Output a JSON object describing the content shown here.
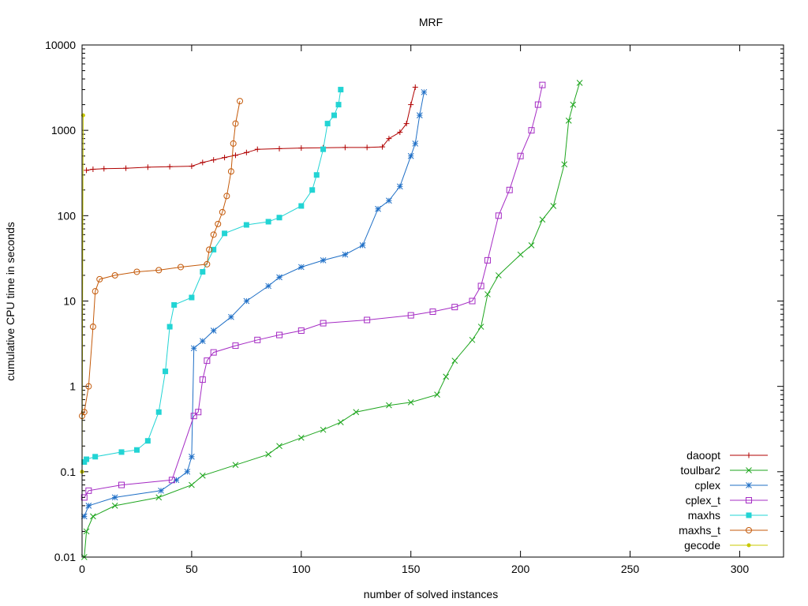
{
  "chart_data": {
    "type": "line",
    "title": "MRF",
    "xlabel": "number of solved instances",
    "ylabel": "cumulative CPU time in seconds",
    "xscale": "linear",
    "yscale": "log",
    "xlim": [
      0,
      320
    ],
    "ylim": [
      0.01,
      10000
    ],
    "xticks": [
      "0",
      "50",
      "100",
      "150",
      "200",
      "250",
      "300"
    ],
    "yticks": [
      "0.01",
      "0.1",
      "1",
      "10",
      "100",
      "1000",
      "10000"
    ],
    "legend_position": "bottom-right",
    "series": [
      {
        "name": "daoopt",
        "color": "#b00000",
        "marker": "plus",
        "points": [
          [
            2,
            340
          ],
          [
            5,
            350
          ],
          [
            10,
            355
          ],
          [
            20,
            360
          ],
          [
            30,
            370
          ],
          [
            40,
            375
          ],
          [
            50,
            380
          ],
          [
            55,
            420
          ],
          [
            60,
            450
          ],
          [
            65,
            480
          ],
          [
            70,
            510
          ],
          [
            75,
            550
          ],
          [
            80,
            600
          ],
          [
            90,
            610
          ],
          [
            100,
            620
          ],
          [
            110,
            625
          ],
          [
            120,
            630
          ],
          [
            130,
            630
          ],
          [
            137,
            640
          ],
          [
            140,
            800
          ],
          [
            145,
            950
          ],
          [
            148,
            1200
          ],
          [
            150,
            2000
          ],
          [
            152,
            3200
          ]
        ]
      },
      {
        "name": "toulbar2",
        "color": "#1da51d",
        "marker": "x",
        "points": [
          [
            1,
            0.01
          ],
          [
            2,
            0.02
          ],
          [
            5,
            0.03
          ],
          [
            15,
            0.04
          ],
          [
            35,
            0.05
          ],
          [
            50,
            0.07
          ],
          [
            55,
            0.09
          ],
          [
            70,
            0.12
          ],
          [
            85,
            0.16
          ],
          [
            90,
            0.2
          ],
          [
            100,
            0.25
          ],
          [
            110,
            0.31
          ],
          [
            118,
            0.38
          ],
          [
            125,
            0.5
          ],
          [
            140,
            0.6
          ],
          [
            150,
            0.65
          ],
          [
            162,
            0.8
          ],
          [
            166,
            1.3
          ],
          [
            170,
            2
          ],
          [
            178,
            3.5
          ],
          [
            182,
            5
          ],
          [
            185,
            12
          ],
          [
            190,
            20
          ],
          [
            200,
            35
          ],
          [
            205,
            45
          ],
          [
            210,
            90
          ],
          [
            215,
            130
          ],
          [
            220,
            400
          ],
          [
            222,
            1300
          ],
          [
            224,
            2000
          ],
          [
            227,
            3600
          ]
        ]
      },
      {
        "name": "cplex",
        "color": "#1f6fc6",
        "marker": "star",
        "points": [
          [
            1,
            0.03
          ],
          [
            3,
            0.04
          ],
          [
            15,
            0.05
          ],
          [
            36,
            0.06
          ],
          [
            43,
            0.08
          ],
          [
            48,
            0.1
          ],
          [
            50,
            0.15
          ],
          [
            51,
            2.8
          ],
          [
            55,
            3.4
          ],
          [
            60,
            4.5
          ],
          [
            68,
            6.5
          ],
          [
            75,
            10
          ],
          [
            85,
            15
          ],
          [
            90,
            19
          ],
          [
            100,
            25
          ],
          [
            110,
            30
          ],
          [
            120,
            35
          ],
          [
            128,
            45
          ],
          [
            135,
            120
          ],
          [
            140,
            150
          ],
          [
            145,
            220
          ],
          [
            150,
            500
          ],
          [
            152,
            700
          ],
          [
            154,
            1500
          ],
          [
            156,
            2800
          ]
        ]
      },
      {
        "name": "cplex_t",
        "color": "#a52cc4",
        "marker": "square-open",
        "points": [
          [
            1,
            0.05
          ],
          [
            3,
            0.06
          ],
          [
            18,
            0.07
          ],
          [
            41,
            0.08
          ],
          [
            51,
            0.45
          ],
          [
            53,
            0.5
          ],
          [
            55,
            1.2
          ],
          [
            57,
            2
          ],
          [
            60,
            2.5
          ],
          [
            70,
            3
          ],
          [
            80,
            3.5
          ],
          [
            90,
            4
          ],
          [
            100,
            4.5
          ],
          [
            110,
            5.5
          ],
          [
            130,
            6
          ],
          [
            150,
            6.8
          ],
          [
            160,
            7.5
          ],
          [
            170,
            8.5
          ],
          [
            178,
            10
          ],
          [
            182,
            15
          ],
          [
            185,
            30
          ],
          [
            190,
            100
          ],
          [
            195,
            200
          ],
          [
            200,
            500
          ],
          [
            205,
            1000
          ],
          [
            208,
            2000
          ],
          [
            210,
            3400
          ]
        ]
      },
      {
        "name": "maxhs",
        "color": "#22d4d4",
        "marker": "square",
        "points": [
          [
            1,
            0.13
          ],
          [
            2,
            0.14
          ],
          [
            6,
            0.15
          ],
          [
            18,
            0.17
          ],
          [
            25,
            0.18
          ],
          [
            30,
            0.23
          ],
          [
            35,
            0.5
          ],
          [
            38,
            1.5
          ],
          [
            40,
            5
          ],
          [
            42,
            9
          ],
          [
            50,
            11
          ],
          [
            55,
            22
          ],
          [
            60,
            40
          ],
          [
            65,
            62
          ],
          [
            75,
            78
          ],
          [
            85,
            85
          ],
          [
            90,
            95
          ],
          [
            100,
            130
          ],
          [
            105,
            200
          ],
          [
            107,
            300
          ],
          [
            110,
            600
          ],
          [
            112,
            1200
          ],
          [
            115,
            1500
          ],
          [
            117,
            2000
          ],
          [
            118,
            3000
          ]
        ]
      },
      {
        "name": "maxhs_t",
        "color": "#c45a0a",
        "marker": "circle-open",
        "points": [
          [
            0,
            0.45
          ],
          [
            1,
            0.5
          ],
          [
            3,
            1
          ],
          [
            5,
            5
          ],
          [
            6,
            13
          ],
          [
            8,
            18
          ],
          [
            15,
            20
          ],
          [
            25,
            22
          ],
          [
            35,
            23
          ],
          [
            45,
            25
          ],
          [
            57,
            27
          ],
          [
            58,
            40
          ],
          [
            60,
            60
          ],
          [
            62,
            80
          ],
          [
            64,
            110
          ],
          [
            66,
            170
          ],
          [
            68,
            330
          ],
          [
            69,
            700
          ],
          [
            70,
            1200
          ],
          [
            72,
            2200
          ]
        ]
      },
      {
        "name": "gecode",
        "color": "#c8c800",
        "marker": "dot",
        "points": [
          [
            0,
            0.1
          ],
          [
            0.5,
            1500
          ]
        ]
      }
    ]
  }
}
